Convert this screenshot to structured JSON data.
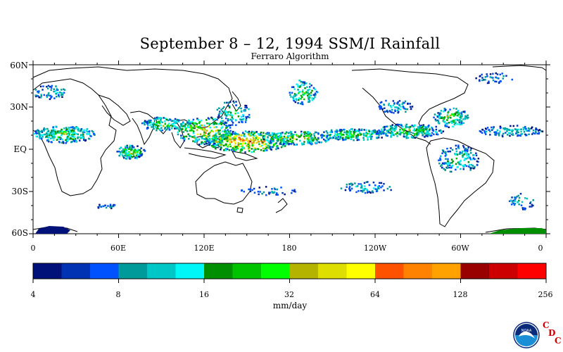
{
  "title": "September 8 – 12, 1994 SSM/I Rainfall",
  "subtitle": "Ferraro Algorithm",
  "lat_labels": [
    "60N",
    "30N",
    "EQ",
    "30S",
    "60S"
  ],
  "lon_labels": [
    "0",
    "60E",
    "120E",
    "180",
    "120W",
    "60W",
    "0"
  ],
  "colorbar": {
    "colors": [
      "#00127a",
      "#0033b3",
      "#0052ff",
      "#009a9a",
      "#00c7c7",
      "#00f7f7",
      "#008f00",
      "#00c400",
      "#00ff00",
      "#b3b300",
      "#dede00",
      "#ffff00",
      "#ff5200",
      "#ff8200",
      "#ffa200",
      "#990000",
      "#cc0000",
      "#ff0000"
    ],
    "tick_labels": [
      "4",
      "8",
      "16",
      "32",
      "64",
      "128",
      "256"
    ],
    "units": "mm/day"
  },
  "logo": {
    "icon": "noaa-logo-icon",
    "cdc": [
      "C",
      "D",
      "C"
    ]
  }
}
